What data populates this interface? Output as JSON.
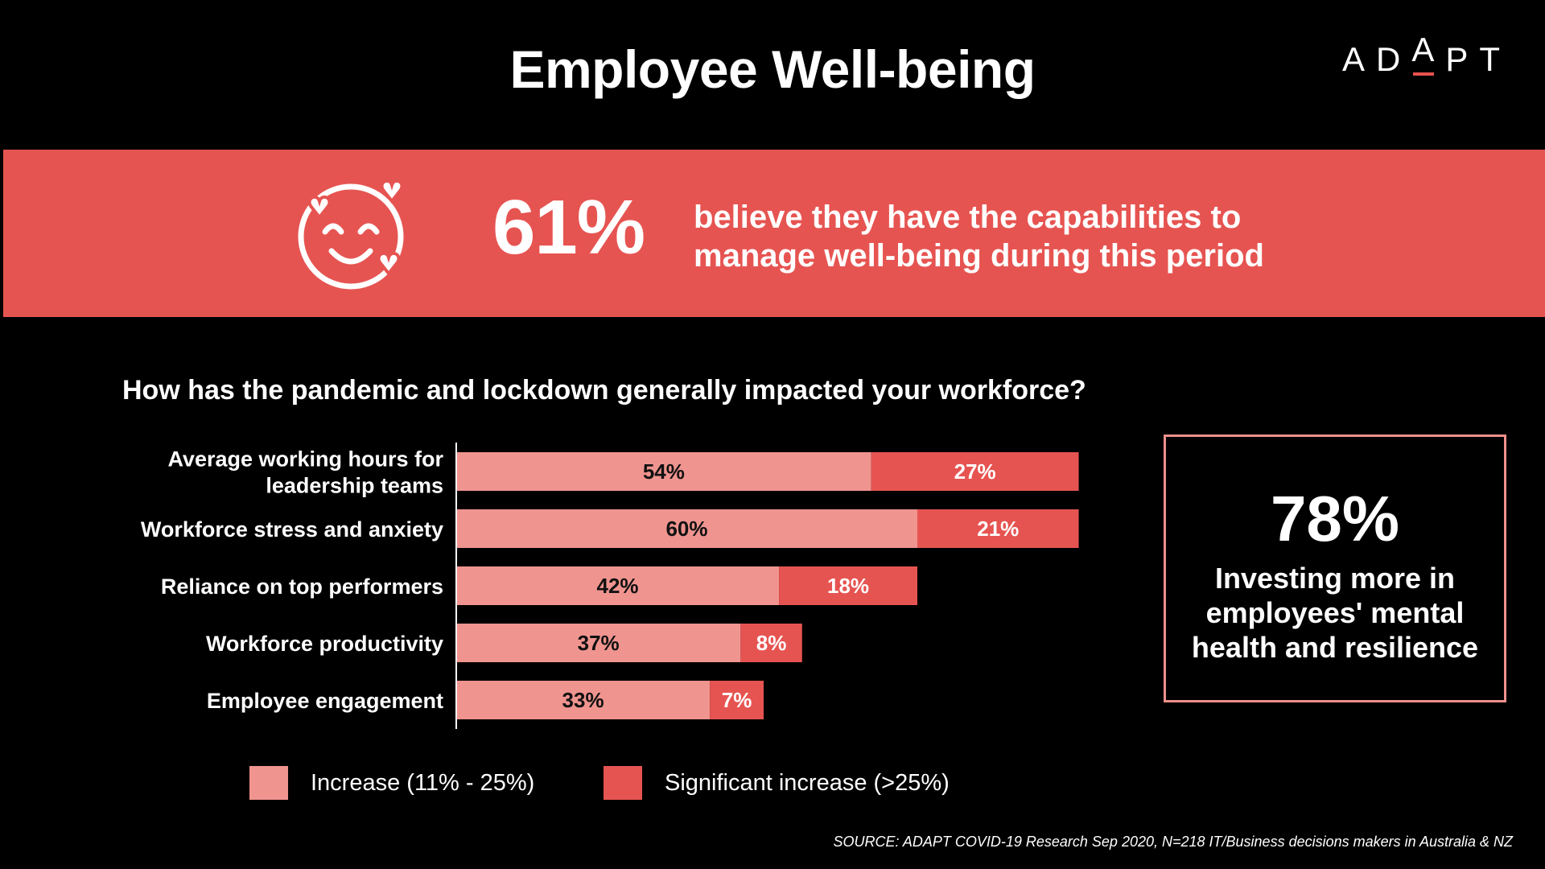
{
  "header": {
    "title": "Employee Well-being",
    "logo": "ADAPT"
  },
  "banner": {
    "stat": "61%",
    "text_line1": "believe they have the capabilities to",
    "text_line2": "manage well-being during this period",
    "icon": "smiling-face-with-hearts-icon",
    "color": "#e65451"
  },
  "question": "How has the pandemic and lockdown generally impacted your workforce?",
  "chart_data": {
    "type": "bar",
    "orientation": "horizontal",
    "stacked": true,
    "categories": [
      [
        "Average working hours for",
        "leadership teams"
      ],
      [
        "Workforce stress and anxiety"
      ],
      [
        "Reliance on top performers"
      ],
      [
        "Workforce productivity"
      ],
      [
        "Employee engagement"
      ]
    ],
    "series": [
      {
        "name": "Increase (11% - 25%)",
        "color": "#f0948f",
        "values": [
          54,
          60,
          42,
          37,
          33
        ],
        "labels": [
          "54%",
          "60%",
          "42%",
          "37%",
          "33%"
        ]
      },
      {
        "name": "Significant increase (>25%)",
        "color": "#e65451",
        "values": [
          27,
          21,
          18,
          8,
          7
        ],
        "labels": [
          "27%",
          "21%",
          "18%",
          "8%",
          "7%"
        ]
      }
    ],
    "legend": "bottom",
    "grid": false
  },
  "callout": {
    "stat": "78%",
    "text": "Investing more in employees' mental health and resilience"
  },
  "source": "SOURCE: ADAPT COVID-19 Research Sep 2020, N=218 IT/Business decisions makers in Australia & NZ"
}
